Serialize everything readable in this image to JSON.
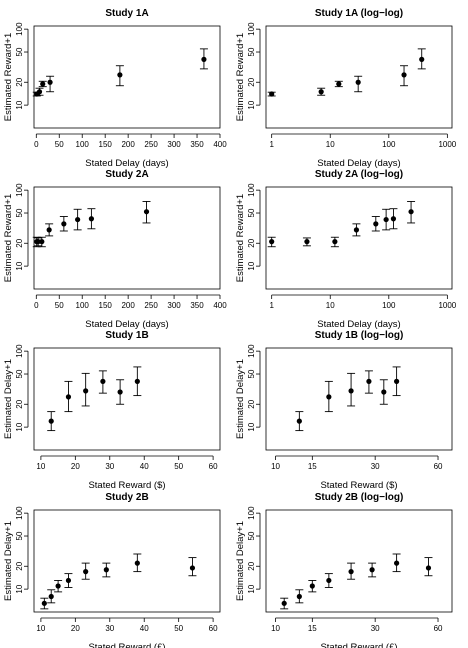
{
  "chart_data": [
    {
      "type": "scatter",
      "title": "Study 1A",
      "xlabel": "Stated Delay (days)",
      "ylabel": "Estimated Reward+1",
      "x_scale": "linear",
      "y_scale": "log",
      "xlim": [
        -5,
        400
      ],
      "ylim": [
        5,
        110
      ],
      "xticks": [
        0,
        50,
        100,
        150,
        200,
        250,
        300,
        350,
        400
      ],
      "yticks": [
        10,
        20,
        50,
        100
      ],
      "points": [
        {
          "x": 1,
          "y": 14,
          "lo": 13.2,
          "hi": 14.8
        },
        {
          "x": 7,
          "y": 15,
          "lo": 13.5,
          "hi": 16.7
        },
        {
          "x": 14,
          "y": 19,
          "lo": 17.5,
          "hi": 20.6
        },
        {
          "x": 30,
          "y": 20,
          "lo": 15,
          "hi": 24
        },
        {
          "x": 182,
          "y": 25,
          "lo": 18,
          "hi": 33
        },
        {
          "x": 365,
          "y": 40,
          "lo": 30,
          "hi": 55
        }
      ]
    },
    {
      "type": "scatter",
      "title": "Study 1A (log−log)",
      "xlabel": "Stated Delay (days)",
      "ylabel": "Estimated Reward+1",
      "x_scale": "log",
      "y_scale": "log",
      "xlim": [
        0.8,
        1200
      ],
      "ylim": [
        5,
        110
      ],
      "xticks": [
        1,
        10,
        100,
        1000
      ],
      "yticks": [
        10,
        20,
        50,
        100
      ],
      "points": [
        {
          "x": 1,
          "y": 14,
          "lo": 13.2,
          "hi": 14.8
        },
        {
          "x": 7,
          "y": 15,
          "lo": 13.5,
          "hi": 16.7
        },
        {
          "x": 14,
          "y": 19,
          "lo": 17.5,
          "hi": 20.6
        },
        {
          "x": 30,
          "y": 20,
          "lo": 15,
          "hi": 24
        },
        {
          "x": 182,
          "y": 25,
          "lo": 18,
          "hi": 33
        },
        {
          "x": 365,
          "y": 40,
          "lo": 30,
          "hi": 55
        }
      ]
    },
    {
      "type": "scatter",
      "title": "Study 2A",
      "xlabel": "Stated Delay (days)",
      "ylabel": "Estimated Reward+1",
      "x_scale": "linear",
      "y_scale": "log",
      "xlim": [
        -5,
        400
      ],
      "ylim": [
        5,
        110
      ],
      "xticks": [
        0,
        50,
        100,
        150,
        200,
        250,
        300,
        350,
        400
      ],
      "yticks": [
        10,
        20,
        50,
        100
      ],
      "points": [
        {
          "x": 1,
          "y": 21,
          "lo": 18,
          "hi": 24
        },
        {
          "x": 4,
          "y": 21,
          "lo": 18.5,
          "hi": 23.5
        },
        {
          "x": 12,
          "y": 21,
          "lo": 18,
          "hi": 24
        },
        {
          "x": 28,
          "y": 30,
          "lo": 25,
          "hi": 36
        },
        {
          "x": 60,
          "y": 36,
          "lo": 29,
          "hi": 45
        },
        {
          "x": 90,
          "y": 41,
          "lo": 30,
          "hi": 56
        },
        {
          "x": 120,
          "y": 42,
          "lo": 31,
          "hi": 57
        },
        {
          "x": 240,
          "y": 52,
          "lo": 37,
          "hi": 71
        }
      ]
    },
    {
      "type": "scatter",
      "title": "Study 2A (log−log)",
      "xlabel": "Stated Delay (days)",
      "ylabel": "Estimated Reward+1",
      "x_scale": "log",
      "y_scale": "log",
      "xlim": [
        0.8,
        1200
      ],
      "ylim": [
        5,
        110
      ],
      "xticks": [
        1,
        10,
        100,
        1000
      ],
      "yticks": [
        10,
        20,
        50,
        100
      ],
      "points": [
        {
          "x": 1,
          "y": 21,
          "lo": 18,
          "hi": 24
        },
        {
          "x": 4,
          "y": 21,
          "lo": 18.5,
          "hi": 23.5
        },
        {
          "x": 12,
          "y": 21,
          "lo": 18,
          "hi": 24
        },
        {
          "x": 28,
          "y": 30,
          "lo": 25,
          "hi": 36
        },
        {
          "x": 60,
          "y": 36,
          "lo": 29,
          "hi": 45
        },
        {
          "x": 90,
          "y": 41,
          "lo": 30,
          "hi": 56
        },
        {
          "x": 120,
          "y": 42,
          "lo": 31,
          "hi": 57
        },
        {
          "x": 240,
          "y": 52,
          "lo": 37,
          "hi": 71
        }
      ]
    },
    {
      "type": "scatter",
      "title": "Study 1B",
      "xlabel": "Stated Reward ($)",
      "ylabel": "Estimated Delay+1",
      "x_scale": "linear",
      "y_scale": "log",
      "xlim": [
        8,
        62
      ],
      "ylim": [
        5,
        110
      ],
      "xticks": [
        10,
        20,
        30,
        40,
        50,
        60
      ],
      "yticks": [
        10,
        20,
        50,
        100
      ],
      "points": [
        {
          "x": 13,
          "y": 12,
          "lo": 9,
          "hi": 16
        },
        {
          "x": 18,
          "y": 25,
          "lo": 16,
          "hi": 40
        },
        {
          "x": 23,
          "y": 30,
          "lo": 19,
          "hi": 51
        },
        {
          "x": 28,
          "y": 40,
          "lo": 28,
          "hi": 55
        },
        {
          "x": 33,
          "y": 29,
          "lo": 20,
          "hi": 42
        },
        {
          "x": 38,
          "y": 40,
          "lo": 26,
          "hi": 62
        }
      ]
    },
    {
      "type": "scatter",
      "title": "Study 1B (log−log)",
      "xlabel": "Stated Reward ($)",
      "ylabel": "Estimated Delay+1",
      "x_scale": "log",
      "y_scale": "log",
      "xlim": [
        9,
        70
      ],
      "ylim": [
        5,
        110
      ],
      "xticks": [
        10,
        15,
        30,
        60
      ],
      "yticks": [
        10,
        20,
        50,
        100
      ],
      "points": [
        {
          "x": 13,
          "y": 12,
          "lo": 9,
          "hi": 16
        },
        {
          "x": 18,
          "y": 25,
          "lo": 16,
          "hi": 40
        },
        {
          "x": 23,
          "y": 30,
          "lo": 19,
          "hi": 51
        },
        {
          "x": 28,
          "y": 40,
          "lo": 28,
          "hi": 55
        },
        {
          "x": 33,
          "y": 29,
          "lo": 20,
          "hi": 42
        },
        {
          "x": 38,
          "y": 40,
          "lo": 26,
          "hi": 62
        }
      ]
    },
    {
      "type": "scatter",
      "title": "Study 2B",
      "xlabel": "Stated Reward (£)",
      "ylabel": "Estimated Delay+1",
      "x_scale": "linear",
      "y_scale": "log",
      "xlim": [
        8,
        62
      ],
      "ylim": [
        5,
        110
      ],
      "xticks": [
        10,
        20,
        30,
        40,
        50,
        60
      ],
      "yticks": [
        10,
        20,
        50,
        100
      ],
      "points": [
        {
          "x": 11,
          "y": 6.5,
          "lo": 5.5,
          "hi": 7.6
        },
        {
          "x": 13,
          "y": 8,
          "lo": 6.6,
          "hi": 9.8
        },
        {
          "x": 15,
          "y": 11,
          "lo": 9.2,
          "hi": 13
        },
        {
          "x": 18,
          "y": 13,
          "lo": 10.5,
          "hi": 16
        },
        {
          "x": 23,
          "y": 17,
          "lo": 13.5,
          "hi": 22
        },
        {
          "x": 29,
          "y": 18,
          "lo": 14.5,
          "hi": 22
        },
        {
          "x": 38,
          "y": 22,
          "lo": 17,
          "hi": 29
        },
        {
          "x": 54,
          "y": 19,
          "lo": 15,
          "hi": 26
        }
      ]
    },
    {
      "type": "scatter",
      "title": "Study 2B (log−log)",
      "xlabel": "Stated Reward (£)",
      "ylabel": "Estimated Delay+1",
      "x_scale": "log",
      "y_scale": "log",
      "xlim": [
        9,
        70
      ],
      "ylim": [
        5,
        110
      ],
      "xticks": [
        10,
        15,
        30,
        60
      ],
      "yticks": [
        10,
        20,
        50,
        100
      ],
      "points": [
        {
          "x": 11,
          "y": 6.5,
          "lo": 5.5,
          "hi": 7.6
        },
        {
          "x": 13,
          "y": 8,
          "lo": 6.6,
          "hi": 9.8
        },
        {
          "x": 15,
          "y": 11,
          "lo": 9.2,
          "hi": 13
        },
        {
          "x": 18,
          "y": 13,
          "lo": 10.5,
          "hi": 16
        },
        {
          "x": 23,
          "y": 17,
          "lo": 13.5,
          "hi": 22
        },
        {
          "x": 29,
          "y": 18,
          "lo": 14.5,
          "hi": 22
        },
        {
          "x": 38,
          "y": 22,
          "lo": 17,
          "hi": 29
        },
        {
          "x": 54,
          "y": 19,
          "lo": 15,
          "hi": 26
        }
      ]
    }
  ]
}
